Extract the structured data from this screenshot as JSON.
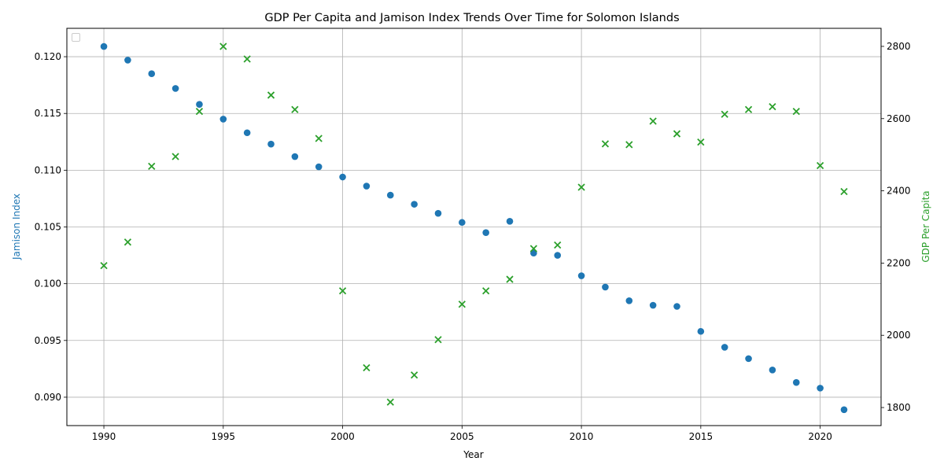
{
  "chart_data": {
    "type": "scatter",
    "title": "GDP Per Capita and Jamison Index Trends Over Time for Solomon Islands",
    "xlabel": "Year",
    "ylabel_left": "Jamison Index",
    "ylabel_right": "GDP Per Capita",
    "xlim": [
      1988.45,
      1992.55
    ],
    "x_ticks": [
      1990,
      1995,
      2000,
      2005,
      2010,
      2015,
      2020
    ],
    "ylim_left": [
      0.0875,
      0.1225
    ],
    "y_ticks_left": [
      0.09,
      0.095,
      0.1,
      0.105,
      0.11,
      0.115,
      0.12
    ],
    "ylim_right": [
      1750,
      2850
    ],
    "y_ticks_right": [
      1800,
      2000,
      2200,
      2400,
      2600,
      2800
    ],
    "grid": true,
    "legend": "top-left (empty)",
    "colors": {
      "jamison": "#1f77b4",
      "gdp": "#2ca02c",
      "grid": "#b0b0b0"
    },
    "x": [
      1990,
      1991,
      1992,
      1993,
      1994,
      1995,
      1996,
      1997,
      1998,
      1999,
      2000,
      2001,
      2002,
      2003,
      2004,
      2005,
      2006,
      2007,
      2008,
      2009,
      2010,
      2011,
      2012,
      2013,
      2014,
      2015,
      2016,
      2017,
      2018,
      2019,
      2020,
      2021
    ],
    "series": [
      {
        "axis": "left",
        "marker": "circle",
        "color": "#1f77b4",
        "values": [
          0.1209,
          0.1197,
          0.1185,
          0.1172,
          0.1158,
          0.1145,
          0.1133,
          0.1123,
          0.1112,
          0.1103,
          0.1094,
          0.1086,
          0.1078,
          0.107,
          0.1062,
          0.1054,
          0.1045,
          0.1055,
          0.1027,
          0.1025,
          0.1007,
          0.0997,
          0.0985,
          0.0981,
          0.098,
          0.0958,
          0.0944,
          0.0934,
          0.0924,
          0.0913,
          0.0908,
          0.0889
        ]
      },
      {
        "axis": "right",
        "marker": "x",
        "color": "#2ca02c",
        "values": [
          2193,
          2258,
          2468,
          2495,
          2620,
          2800,
          2765,
          2665,
          2625,
          2545,
          2123,
          1910,
          1815,
          1890,
          1988,
          2086,
          2123,
          2155,
          2240,
          2250,
          2410,
          2530,
          2528,
          2593,
          2558,
          2535,
          2612,
          2625,
          2633,
          2620,
          2470,
          2398
        ]
      }
    ]
  }
}
